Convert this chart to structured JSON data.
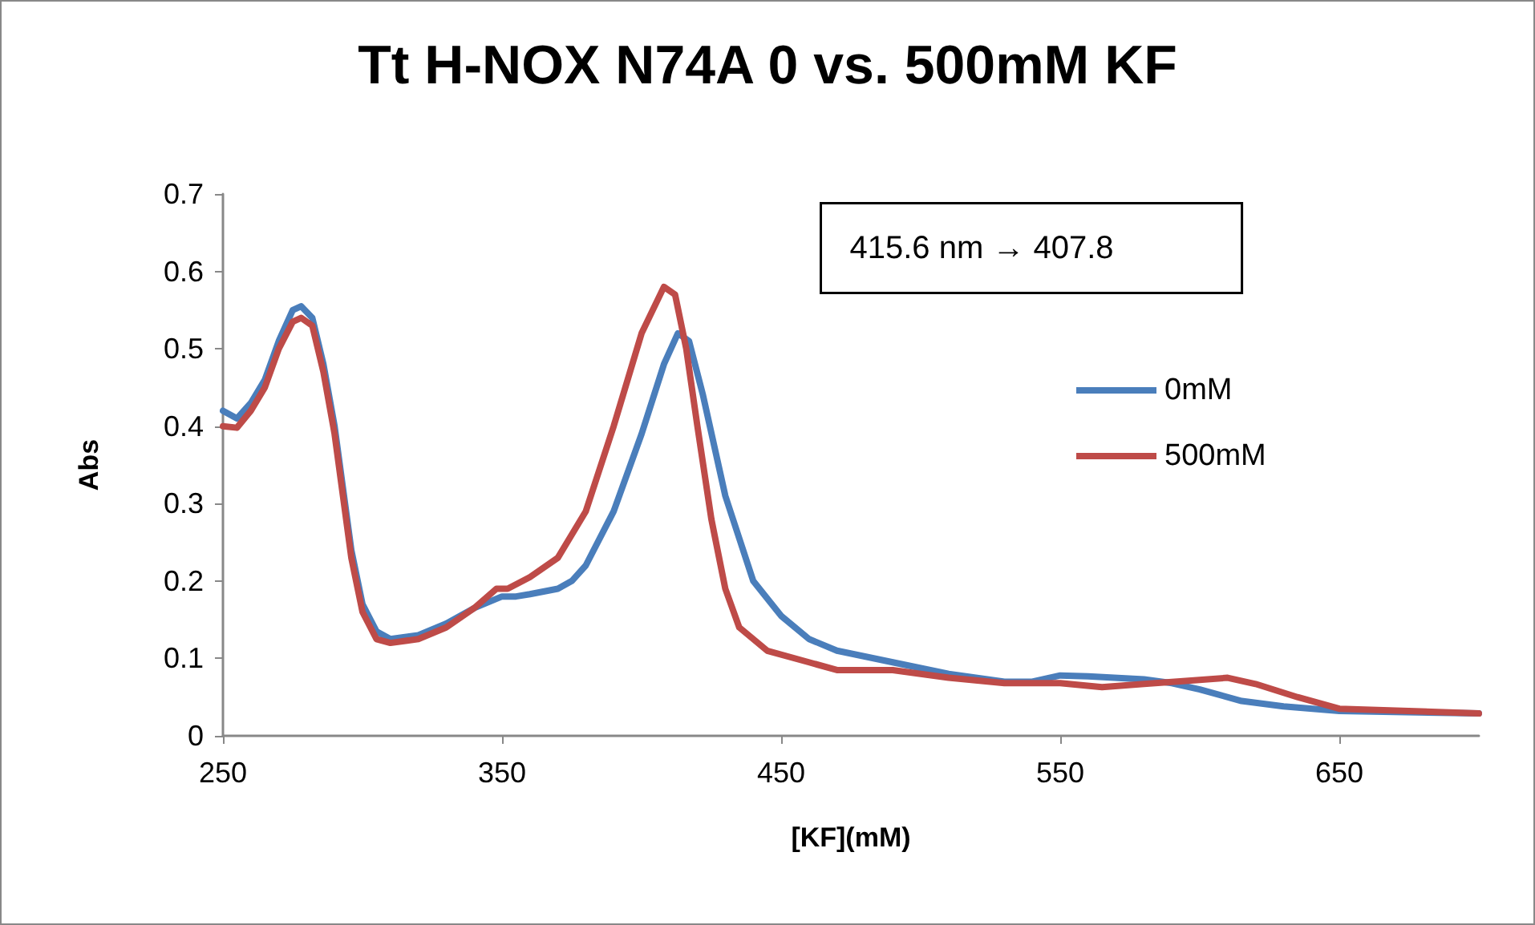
{
  "chart_data": {
    "type": "line",
    "title": "Tt H-NOX N74A 0 vs. 500mM KF",
    "xlabel": "[KF](mM)",
    "ylabel": "Abs",
    "annotations": [
      "415.6 nm → 407.8"
    ],
    "xlim": [
      250,
      700
    ],
    "xticks": [
      250,
      350,
      450,
      550,
      650
    ],
    "ylim": [
      0,
      0.7
    ],
    "yticks": [
      0,
      0.1,
      0.2,
      0.3,
      0.4,
      0.5,
      0.6,
      0.7
    ],
    "grid": false,
    "legend": "right",
    "marker": "none",
    "line_style": "solid",
    "series": [
      {
        "name": "0mM",
        "color": "#4a7ebb",
        "x": [
          250,
          255,
          260,
          265,
          270,
          275,
          278,
          282,
          286,
          290,
          293,
          296,
          300,
          305,
          310,
          320,
          330,
          340,
          350,
          355,
          360,
          370,
          375,
          380,
          390,
          400,
          408,
          413,
          417,
          422,
          430,
          440,
          450,
          460,
          470,
          490,
          510,
          530,
          540,
          550,
          560,
          580,
          590,
          600,
          615,
          630,
          650,
          700
        ],
        "values": [
          0.42,
          0.41,
          0.43,
          0.46,
          0.51,
          0.55,
          0.555,
          0.54,
          0.48,
          0.4,
          0.32,
          0.24,
          0.17,
          0.135,
          0.125,
          0.13,
          0.145,
          0.165,
          0.18,
          0.18,
          0.183,
          0.19,
          0.2,
          0.22,
          0.29,
          0.39,
          0.48,
          0.52,
          0.51,
          0.44,
          0.31,
          0.2,
          0.155,
          0.125,
          0.11,
          0.095,
          0.08,
          0.07,
          0.07,
          0.078,
          0.077,
          0.073,
          0.068,
          0.06,
          0.045,
          0.038,
          0.032,
          0.029
        ]
      },
      {
        "name": "500mM",
        "color": "#be4b48",
        "x": [
          250,
          255,
          260,
          265,
          270,
          275,
          278,
          282,
          286,
          290,
          293,
          296,
          300,
          305,
          310,
          320,
          330,
          340,
          348,
          352,
          360,
          370,
          380,
          390,
          400,
          408,
          412,
          416,
          420,
          425,
          430,
          435,
          445,
          460,
          470,
          490,
          510,
          530,
          550,
          565,
          580,
          595,
          610,
          620,
          635,
          650,
          700
        ],
        "values": [
          0.4,
          0.398,
          0.42,
          0.45,
          0.5,
          0.535,
          0.54,
          0.53,
          0.47,
          0.39,
          0.31,
          0.23,
          0.16,
          0.125,
          0.12,
          0.125,
          0.14,
          0.165,
          0.19,
          0.19,
          0.205,
          0.23,
          0.29,
          0.4,
          0.52,
          0.58,
          0.57,
          0.5,
          0.4,
          0.28,
          0.19,
          0.14,
          0.11,
          0.095,
          0.085,
          0.085,
          0.075,
          0.068,
          0.068,
          0.063,
          0.067,
          0.071,
          0.075,
          0.067,
          0.05,
          0.035,
          0.029
        ]
      }
    ]
  }
}
